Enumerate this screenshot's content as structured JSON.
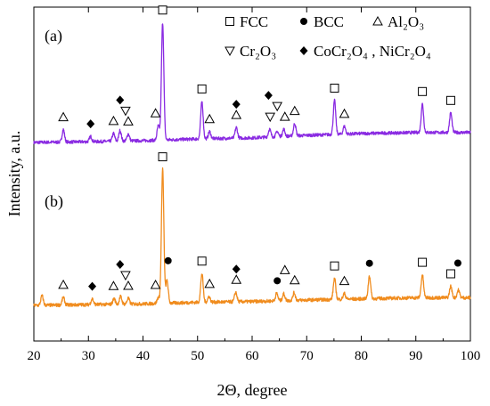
{
  "chart_data": {
    "type": "line",
    "xlabel": "2Θ, degree",
    "ylabel": "Intensity, a.u.",
    "xlim": [
      20,
      100
    ],
    "x_ticks": [
      20,
      30,
      40,
      50,
      60,
      70,
      80,
      90,
      100
    ],
    "grid": false,
    "legend_position": "top-right",
    "legend": [
      {
        "symbol": "square-open",
        "label": "FCC"
      },
      {
        "symbol": "circle-filled",
        "label": "BCC"
      },
      {
        "symbol": "triangle-up-open",
        "label": "Al₂O₃"
      },
      {
        "symbol": "triangle-down-open",
        "label": "Cr₂O₃"
      },
      {
        "symbol": "diamond-filled",
        "label": "CoCr₂O₄ , NiCr₂O₄"
      }
    ],
    "series": [
      {
        "label": "(a)",
        "color": "#8a2be2",
        "baseline": [
          [
            20,
            0.0
          ],
          [
            30,
            0.02
          ],
          [
            40,
            0.05
          ],
          [
            50,
            0.1
          ],
          [
            60,
            0.13
          ],
          [
            70,
            0.2
          ],
          [
            80,
            0.25
          ],
          [
            90,
            0.28
          ],
          [
            100,
            0.28
          ]
        ],
        "peaks": [
          [
            25.4,
            0.35
          ],
          [
            30.4,
            0.15
          ],
          [
            34.6,
            0.22
          ],
          [
            35.8,
            0.3
          ],
          [
            37.3,
            0.2
          ],
          [
            42.8,
            0.4
          ],
          [
            43.6,
            3.3
          ],
          [
            50.8,
            1.05
          ],
          [
            52.2,
            0.2
          ],
          [
            57.1,
            0.3
          ],
          [
            63.2,
            0.22
          ],
          [
            64.6,
            0.15
          ],
          [
            65.8,
            0.2
          ],
          [
            67.8,
            0.35
          ],
          [
            75.1,
            0.95
          ],
          [
            76.9,
            0.22
          ],
          [
            91.2,
            0.8
          ],
          [
            96.4,
            0.55
          ]
        ],
        "markers": [
          {
            "x": 43.6,
            "symbol": "square-open"
          },
          {
            "x": 50.8,
            "symbol": "square-open"
          },
          {
            "x": 75.1,
            "symbol": "square-open"
          },
          {
            "x": 91.2,
            "symbol": "square-open"
          },
          {
            "x": 96.4,
            "symbol": "square-open"
          },
          {
            "x": 25.4,
            "symbol": "triangle-up-open"
          },
          {
            "x": 34.6,
            "symbol": "triangle-up-open"
          },
          {
            "x": 37.3,
            "symbol": "triangle-up-open"
          },
          {
            "x": 42.3,
            "symbol": "triangle-up-open"
          },
          {
            "x": 52.2,
            "symbol": "triangle-up-open"
          },
          {
            "x": 57.1,
            "symbol": "triangle-up-open"
          },
          {
            "x": 66.0,
            "symbol": "triangle-up-open"
          },
          {
            "x": 67.8,
            "symbol": "triangle-up-open"
          },
          {
            "x": 76.9,
            "symbol": "triangle-up-open"
          },
          {
            "x": 36.8,
            "symbol": "triangle-down-open"
          },
          {
            "x": 63.3,
            "symbol": "triangle-down-open"
          },
          {
            "x": 64.6,
            "symbol": "triangle-down-open"
          },
          {
            "x": 30.4,
            "symbol": "diamond-filled"
          },
          {
            "x": 35.8,
            "symbol": "diamond-filled"
          },
          {
            "x": 57.1,
            "symbol": "diamond-filled"
          },
          {
            "x": 63.0,
            "symbol": "diamond-filled"
          }
        ]
      },
      {
        "label": "(b)",
        "color": "#f08c1e",
        "baseline": [
          [
            20,
            0.0
          ],
          [
            30,
            0.02
          ],
          [
            40,
            0.04
          ],
          [
            50,
            0.08
          ],
          [
            60,
            0.1
          ],
          [
            70,
            0.14
          ],
          [
            80,
            0.17
          ],
          [
            90,
            0.2
          ],
          [
            100,
            0.2
          ]
        ],
        "peaks": [
          [
            21.5,
            0.25
          ],
          [
            25.4,
            0.2
          ],
          [
            30.7,
            0.15
          ],
          [
            34.7,
            0.15
          ],
          [
            35.9,
            0.2
          ],
          [
            37.3,
            0.15
          ],
          [
            42.8,
            0.15
          ],
          [
            43.6,
            3.5
          ],
          [
            44.4,
            0.6
          ],
          [
            50.8,
            0.75
          ],
          [
            52.1,
            0.15
          ],
          [
            57.0,
            0.25
          ],
          [
            64.5,
            0.2
          ],
          [
            65.8,
            0.18
          ],
          [
            67.7,
            0.2
          ],
          [
            75.1,
            0.55
          ],
          [
            76.9,
            0.15
          ],
          [
            81.5,
            0.6
          ],
          [
            91.2,
            0.6
          ],
          [
            96.4,
            0.3
          ],
          [
            97.8,
            0.2
          ]
        ],
        "markers": [
          {
            "x": 43.6,
            "symbol": "square-open"
          },
          {
            "x": 50.8,
            "symbol": "square-open"
          },
          {
            "x": 75.1,
            "symbol": "square-open"
          },
          {
            "x": 91.2,
            "symbol": "square-open"
          },
          {
            "x": 96.4,
            "symbol": "square-open"
          },
          {
            "x": 44.6,
            "symbol": "circle-filled"
          },
          {
            "x": 64.6,
            "symbol": "circle-filled"
          },
          {
            "x": 81.5,
            "symbol": "circle-filled"
          },
          {
            "x": 97.7,
            "symbol": "circle-filled"
          },
          {
            "x": 25.4,
            "symbol": "triangle-up-open"
          },
          {
            "x": 34.6,
            "symbol": "triangle-up-open"
          },
          {
            "x": 37.3,
            "symbol": "triangle-up-open"
          },
          {
            "x": 42.3,
            "symbol": "triangle-up-open"
          },
          {
            "x": 52.2,
            "symbol": "triangle-up-open"
          },
          {
            "x": 57.1,
            "symbol": "triangle-up-open"
          },
          {
            "x": 66.0,
            "symbol": "triangle-up-open"
          },
          {
            "x": 67.8,
            "symbol": "triangle-up-open"
          },
          {
            "x": 76.9,
            "symbol": "triangle-up-open"
          },
          {
            "x": 36.8,
            "symbol": "triangle-down-open"
          },
          {
            "x": 30.7,
            "symbol": "diamond-filled"
          },
          {
            "x": 35.8,
            "symbol": "diamond-filled"
          },
          {
            "x": 57.1,
            "symbol": "diamond-filled"
          }
        ]
      }
    ]
  }
}
